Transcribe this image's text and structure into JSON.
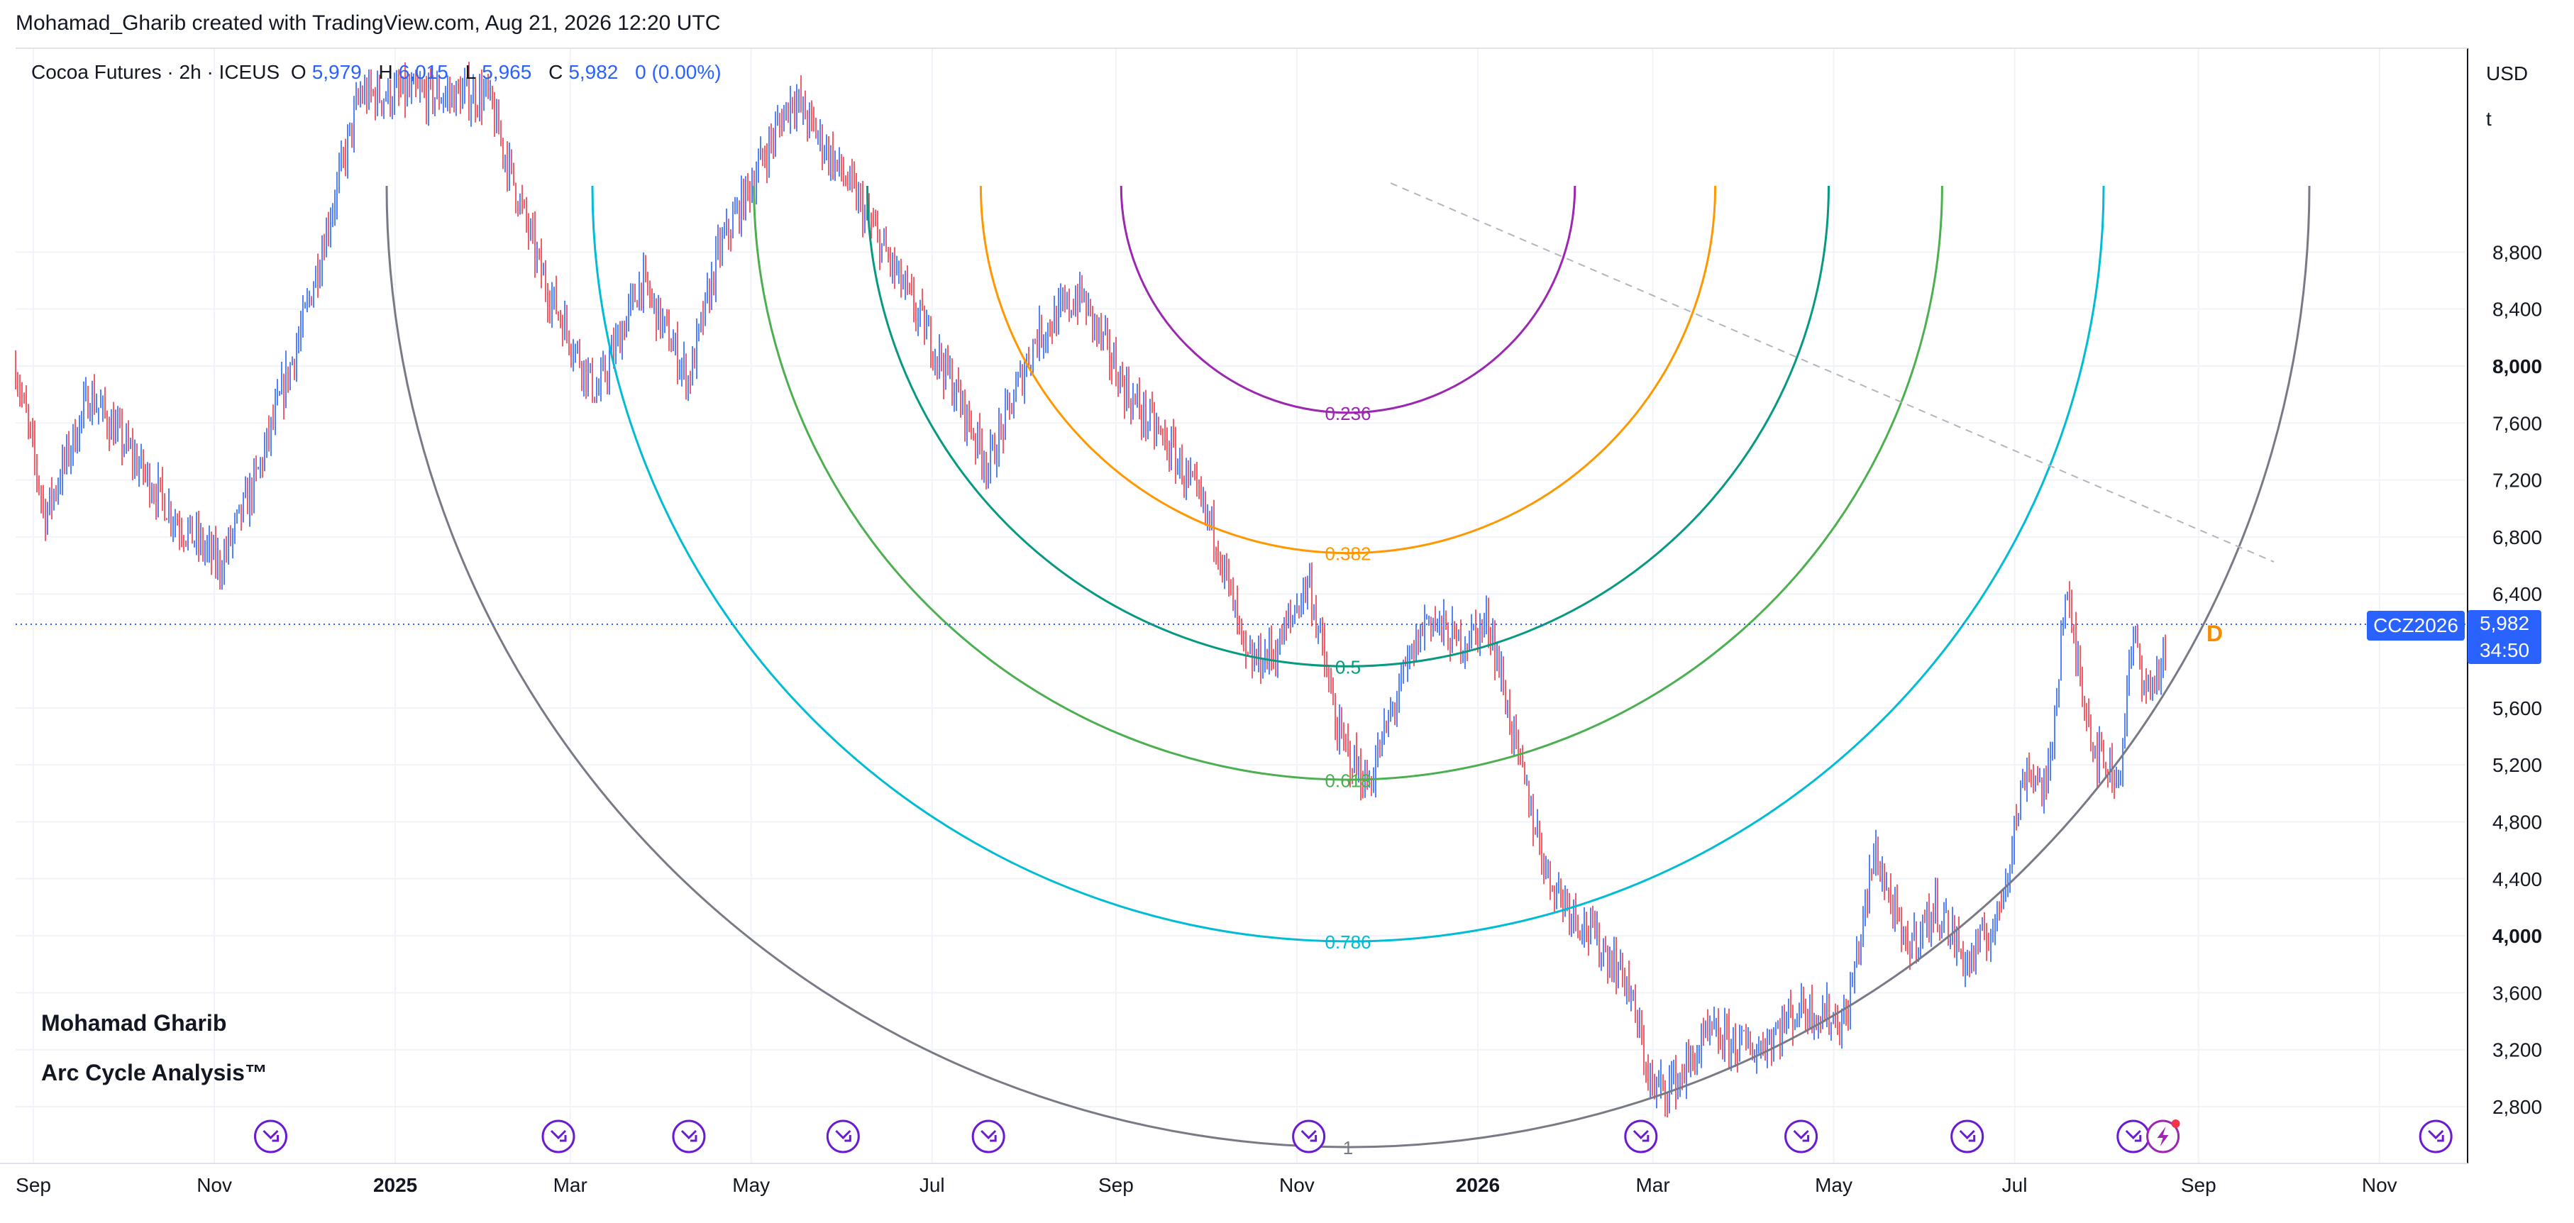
{
  "header": {
    "attribution": "Mohamad_Gharib created with TradingView.com, Aug 21, 2026 12:20 UTC"
  },
  "legend": {
    "symbol": "Cocoa Futures · 2h · ICEUS",
    "open_label": "O",
    "open": "5,979",
    "high_label": "H",
    "high": "6,015",
    "low_label": "L",
    "low": "5,965",
    "close_label": "C",
    "close": "5,982",
    "change": "0 (0.00%)"
  },
  "watermark": {
    "line1": "Mohamad Gharib",
    "line2": "Arc Cycle Analysis™"
  },
  "price_axis": {
    "currency": "USD",
    "unit": "t",
    "ticks": [
      "8,800",
      "8,400",
      "8,000",
      "7,600",
      "7,200",
      "6,800",
      "6,400",
      "5,600",
      "5,200",
      "4,800",
      "4,400",
      "4,000",
      "3,600",
      "3,200",
      "2,800"
    ],
    "bold_ticks": [
      "8,000",
      "4,000"
    ]
  },
  "price_tag": {
    "symbol": "CCZ2026",
    "price": "5,982",
    "countdown": "34:50"
  },
  "marker": {
    "label": "D",
    "color": "#f28c00"
  },
  "time_axis": {
    "labels": [
      "Sep",
      "Nov",
      "2025",
      "Mar",
      "May",
      "Jul",
      "Sep",
      "Nov",
      "2026",
      "Mar",
      "May",
      "Jul",
      "Sep",
      "Nov"
    ],
    "bold_labels": [
      "2025",
      "2026"
    ]
  },
  "colors": {
    "up": "#2962ff",
    "down": "#f23645",
    "accent": "#2962ff"
  },
  "chart_data": {
    "type": "candlestick",
    "title": "Cocoa Futures · 2h · ICEUS",
    "ylabel": "USD / t",
    "ylim": [
      2560,
      9900
    ],
    "current_price": 5982,
    "time_range": [
      "2024-08-26",
      "2026-11-30"
    ],
    "price_path": [
      {
        "date": "2024-08-26",
        "price": 8000
      },
      {
        "date": "2024-09-05",
        "price": 6950
      },
      {
        "date": "2024-09-20",
        "price": 7800
      },
      {
        "date": "2024-10-10",
        "price": 7200
      },
      {
        "date": "2024-10-20",
        "price": 6900
      },
      {
        "date": "2024-11-03",
        "price": 6600
      },
      {
        "date": "2024-11-15",
        "price": 7200
      },
      {
        "date": "2024-12-01",
        "price": 8300
      },
      {
        "date": "2024-12-20",
        "price": 9900
      },
      {
        "date": "2025-02-01",
        "price": 9900
      },
      {
        "date": "2025-02-20",
        "price": 8600
      },
      {
        "date": "2025-03-10",
        "price": 7800
      },
      {
        "date": "2025-03-25",
        "price": 8600
      },
      {
        "date": "2025-04-10",
        "price": 7900
      },
      {
        "date": "2025-04-20",
        "price": 8800
      },
      {
        "date": "2025-05-15",
        "price": 9900
      },
      {
        "date": "2025-06-05",
        "price": 9200
      },
      {
        "date": "2025-06-20",
        "price": 8600
      },
      {
        "date": "2025-07-05",
        "price": 8000
      },
      {
        "date": "2025-07-20",
        "price": 7300
      },
      {
        "date": "2025-08-05",
        "price": 8200
      },
      {
        "date": "2025-08-20",
        "price": 8500
      },
      {
        "date": "2025-09-05",
        "price": 7800
      },
      {
        "date": "2025-09-20",
        "price": 7400
      },
      {
        "date": "2025-10-05",
        "price": 6800
      },
      {
        "date": "2025-10-15",
        "price": 5900
      },
      {
        "date": "2025-10-25",
        "price": 6000
      },
      {
        "date": "2025-11-05",
        "price": 6500
      },
      {
        "date": "2025-11-15",
        "price": 5400
      },
      {
        "date": "2025-11-25",
        "price": 5050
      },
      {
        "date": "2025-12-05",
        "price": 5700
      },
      {
        "date": "2025-12-15",
        "price": 6250
      },
      {
        "date": "2025-12-25",
        "price": 6050
      },
      {
        "date": "2026-01-05",
        "price": 6200
      },
      {
        "date": "2026-01-15",
        "price": 5200
      },
      {
        "date": "2026-01-25",
        "price": 4400
      },
      {
        "date": "2026-02-05",
        "price": 4100
      },
      {
        "date": "2026-02-20",
        "price": 3700
      },
      {
        "date": "2026-03-01",
        "price": 2900
      },
      {
        "date": "2026-03-10",
        "price": 3000
      },
      {
        "date": "2026-03-20",
        "price": 3300
      },
      {
        "date": "2026-04-05",
        "price": 3200
      },
      {
        "date": "2026-04-20",
        "price": 3500
      },
      {
        "date": "2026-05-05",
        "price": 3400
      },
      {
        "date": "2026-05-15",
        "price": 4600
      },
      {
        "date": "2026-05-25",
        "price": 3900
      },
      {
        "date": "2026-06-05",
        "price": 4200
      },
      {
        "date": "2026-06-15",
        "price": 3800
      },
      {
        "date": "2026-06-25",
        "price": 4100
      },
      {
        "date": "2026-07-05",
        "price": 5200
      },
      {
        "date": "2026-07-12",
        "price": 5000
      },
      {
        "date": "2026-07-18",
        "price": 6400
      },
      {
        "date": "2026-07-28",
        "price": 5300
      },
      {
        "date": "2026-08-05",
        "price": 5100
      },
      {
        "date": "2026-08-10",
        "price": 6100
      },
      {
        "date": "2026-08-15",
        "price": 5700
      },
      {
        "date": "2026-08-21",
        "price": 5982
      }
    ],
    "fib_arcs": [
      {
        "level": "0.236",
        "color": "#9c27b0"
      },
      {
        "level": "0.382",
        "color": "#ff9800"
      },
      {
        "level": "0.5",
        "color": "#089981"
      },
      {
        "level": "0.618",
        "color": "#4caf50"
      },
      {
        "level": "0.786",
        "color": "#00bcd4"
      },
      {
        "level": "1",
        "color": "#787b86"
      }
    ],
    "grid": true,
    "legend_position": "top-left"
  }
}
